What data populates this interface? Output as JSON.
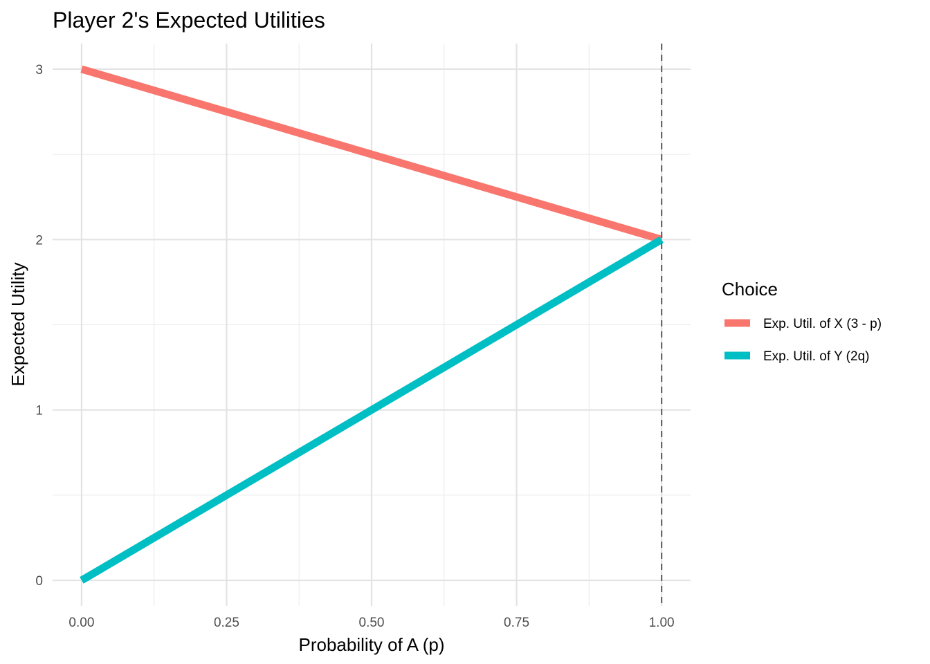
{
  "chart_data": {
    "type": "line",
    "title": "Player 2's Expected Utilities",
    "xlabel": "Probability of A (p)",
    "ylabel": "Expected Utility",
    "xlim": [
      0,
      1
    ],
    "ylim": [
      0,
      3
    ],
    "x_ticks": [
      "0.00",
      "0.25",
      "0.50",
      "0.75",
      "1.00"
    ],
    "x_tick_values": [
      0,
      0.25,
      0.5,
      0.75,
      1
    ],
    "y_ticks": [
      "0",
      "1",
      "2",
      "3"
    ],
    "y_tick_values": [
      0,
      1,
      2,
      3
    ],
    "grid": true,
    "legend": {
      "title": "Choice",
      "placement": "right"
    },
    "series": [
      {
        "name": "Exp. Util. of X (3 - p)",
        "color": "#F8766D",
        "x": [
          0,
          1
        ],
        "y": [
          3,
          2
        ]
      },
      {
        "name": "Exp. Util. of Y (2q)",
        "color": "#00BFC4",
        "x": [
          0,
          1
        ],
        "y": [
          0,
          2
        ]
      }
    ],
    "reference_line": {
      "orientation": "vertical",
      "x": 1,
      "style": "dashed",
      "color": "#666666"
    }
  }
}
